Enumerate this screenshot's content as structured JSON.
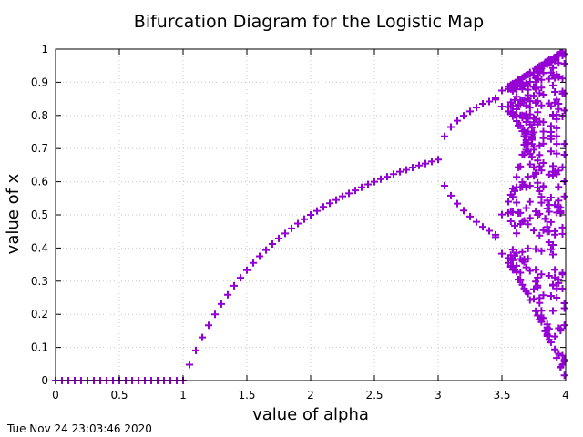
{
  "chart_data": {
    "type": "scatter",
    "title": "Bifurcation Diagram for the Logistic Map",
    "xlabel": "value of alpha",
    "ylabel": "value of x",
    "xlim": [
      0,
      4
    ],
    "ylim": [
      0,
      1
    ],
    "x_ticks": [
      "0",
      "0.5",
      "1",
      "1.5",
      "2",
      "2.5",
      "3",
      "3.5",
      "4"
    ],
    "y_ticks": [
      "0",
      "0.1",
      "0.2",
      "0.3",
      "0.4",
      "0.5",
      "0.6",
      "0.7",
      "0.8",
      "0.9",
      "1"
    ],
    "grid": true,
    "marker": "plus",
    "color": "#9400d3",
    "points": [
      [
        0,
        0
      ],
      [
        0.05,
        0
      ],
      [
        0.1,
        0
      ],
      [
        0.15,
        0
      ],
      [
        0.2,
        0
      ],
      [
        0.25,
        0
      ],
      [
        0.3,
        0
      ],
      [
        0.35,
        0
      ],
      [
        0.4,
        0
      ],
      [
        0.45,
        0
      ],
      [
        0.5,
        0
      ],
      [
        0.55,
        0
      ],
      [
        0.6,
        0
      ],
      [
        0.65,
        0
      ],
      [
        0.7,
        0
      ],
      [
        0.75,
        0
      ],
      [
        0.8,
        0
      ],
      [
        0.85,
        0
      ],
      [
        0.9,
        0
      ],
      [
        0.95,
        0
      ],
      [
        1.0,
        0
      ],
      [
        1.05,
        0.048
      ],
      [
        1.1,
        0.091
      ],
      [
        1.15,
        0.13
      ],
      [
        1.2,
        0.167
      ],
      [
        1.25,
        0.2
      ],
      [
        1.3,
        0.231
      ],
      [
        1.35,
        0.259
      ],
      [
        1.4,
        0.286
      ],
      [
        1.45,
        0.31
      ],
      [
        1.5,
        0.333
      ],
      [
        1.55,
        0.355
      ],
      [
        1.6,
        0.375
      ],
      [
        1.65,
        0.394
      ],
      [
        1.7,
        0.412
      ],
      [
        1.75,
        0.429
      ],
      [
        1.8,
        0.444
      ],
      [
        1.85,
        0.459
      ],
      [
        1.9,
        0.474
      ],
      [
        1.95,
        0.487
      ],
      [
        2.0,
        0.5
      ],
      [
        2.05,
        0.512
      ],
      [
        2.1,
        0.524
      ],
      [
        2.15,
        0.535
      ],
      [
        2.2,
        0.545
      ],
      [
        2.25,
        0.556
      ],
      [
        2.3,
        0.565
      ],
      [
        2.35,
        0.574
      ],
      [
        2.4,
        0.583
      ],
      [
        2.45,
        0.592
      ],
      [
        2.5,
        0.6
      ],
      [
        2.55,
        0.608
      ],
      [
        2.6,
        0.615
      ],
      [
        2.65,
        0.623
      ],
      [
        2.7,
        0.63
      ],
      [
        2.75,
        0.636
      ],
      [
        2.8,
        0.643
      ],
      [
        2.85,
        0.649
      ],
      [
        2.9,
        0.655
      ],
      [
        2.95,
        0.661
      ],
      [
        3.0,
        0.667
      ],
      [
        3.05,
        0.737
      ],
      [
        3.05,
        0.588
      ],
      [
        3.1,
        0.765
      ],
      [
        3.1,
        0.558
      ],
      [
        3.15,
        0.784
      ],
      [
        3.15,
        0.534
      ],
      [
        3.2,
        0.799
      ],
      [
        3.2,
        0.513
      ],
      [
        3.25,
        0.812
      ],
      [
        3.25,
        0.495
      ],
      [
        3.3,
        0.824
      ],
      [
        3.3,
        0.479
      ],
      [
        3.35,
        0.835
      ],
      [
        3.35,
        0.464
      ],
      [
        3.4,
        0.842
      ],
      [
        3.4,
        0.452
      ],
      [
        3.45,
        0.852
      ],
      [
        3.45,
        0.433
      ],
      [
        3.45,
        0.848
      ],
      [
        3.45,
        0.44
      ],
      [
        3.5,
        0.875
      ],
      [
        3.5,
        0.383
      ],
      [
        3.5,
        0.827
      ],
      [
        3.5,
        0.501
      ],
      [
        3.55,
        0.887
      ],
      [
        3.55,
        0.355
      ],
      [
        3.55,
        0.812
      ],
      [
        3.55,
        0.54
      ],
      [
        3.55,
        0.88
      ],
      [
        3.55,
        0.37
      ],
      [
        3.55,
        0.826
      ],
      [
        3.55,
        0.506
      ]
    ],
    "chaotic_region": {
      "alpha_start": 3.57,
      "alpha_end": 4.0,
      "alpha_step": 0.015
    }
  },
  "footer": {
    "timestamp": "Tue Nov 24 23:03:46 2020"
  }
}
